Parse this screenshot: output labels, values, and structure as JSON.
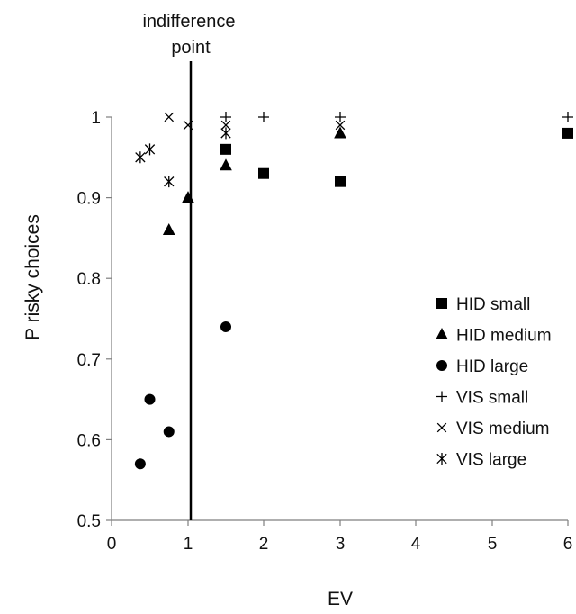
{
  "chart_data": {
    "type": "scatter",
    "xlabel": "EV",
    "ylabel": "P risky choices",
    "ylim": [
      0.5,
      1
    ],
    "y_ticks": [
      0.5,
      0.6,
      0.7,
      0.8,
      0.9,
      1
    ],
    "y_tick_labels": [
      "0.5",
      "0.6",
      "0.7",
      "0.8",
      "0.9",
      "1"
    ],
    "x_ticks": [
      0,
      1,
      2,
      3,
      4,
      5,
      6
    ],
    "x_tick_labels": [
      "0",
      "1",
      "2",
      "3",
      "4",
      "5",
      "6"
    ],
    "x_axis_note": "tick labels are evenly spaced; segment between 5 and 6 is compressed",
    "grid": false,
    "legend_position": "bottom-right",
    "annotation": {
      "text_line1": "indifference",
      "text_line2": "point",
      "x": 1
    },
    "series": [
      {
        "name": "HID small",
        "marker": "square",
        "points": [
          {
            "x": 1.5,
            "y": 0.96
          },
          {
            "x": 2,
            "y": 0.93
          },
          {
            "x": 3,
            "y": 0.92
          },
          {
            "x": 6,
            "y": 0.98
          }
        ]
      },
      {
        "name": "HID medium",
        "marker": "triangle",
        "points": [
          {
            "x": 0.75,
            "y": 0.86
          },
          {
            "x": 1,
            "y": 0.9
          },
          {
            "x": 1.5,
            "y": 0.94
          },
          {
            "x": 3,
            "y": 0.98
          }
        ]
      },
      {
        "name": "HID large",
        "marker": "circle",
        "points": [
          {
            "x": 0.375,
            "y": 0.57
          },
          {
            "x": 0.5,
            "y": 0.65
          },
          {
            "x": 0.75,
            "y": 0.61
          },
          {
            "x": 1.5,
            "y": 0.74
          }
        ]
      },
      {
        "name": "VIS small",
        "marker": "plus",
        "points": [
          {
            "x": 1.5,
            "y": 1.0
          },
          {
            "x": 2,
            "y": 1.0
          },
          {
            "x": 3,
            "y": 1.0
          },
          {
            "x": 6,
            "y": 1.0
          }
        ]
      },
      {
        "name": "VIS medium",
        "marker": "cross",
        "points": [
          {
            "x": 0.75,
            "y": 1.0
          },
          {
            "x": 1,
            "y": 0.99
          },
          {
            "x": 1.5,
            "y": 0.99
          },
          {
            "x": 3,
            "y": 0.99
          }
        ]
      },
      {
        "name": "VIS large",
        "marker": "asterisk",
        "points": [
          {
            "x": 0.375,
            "y": 0.95
          },
          {
            "x": 0.5,
            "y": 0.96
          },
          {
            "x": 0.75,
            "y": 0.92
          },
          {
            "x": 1.5,
            "y": 0.98
          }
        ]
      }
    ]
  }
}
